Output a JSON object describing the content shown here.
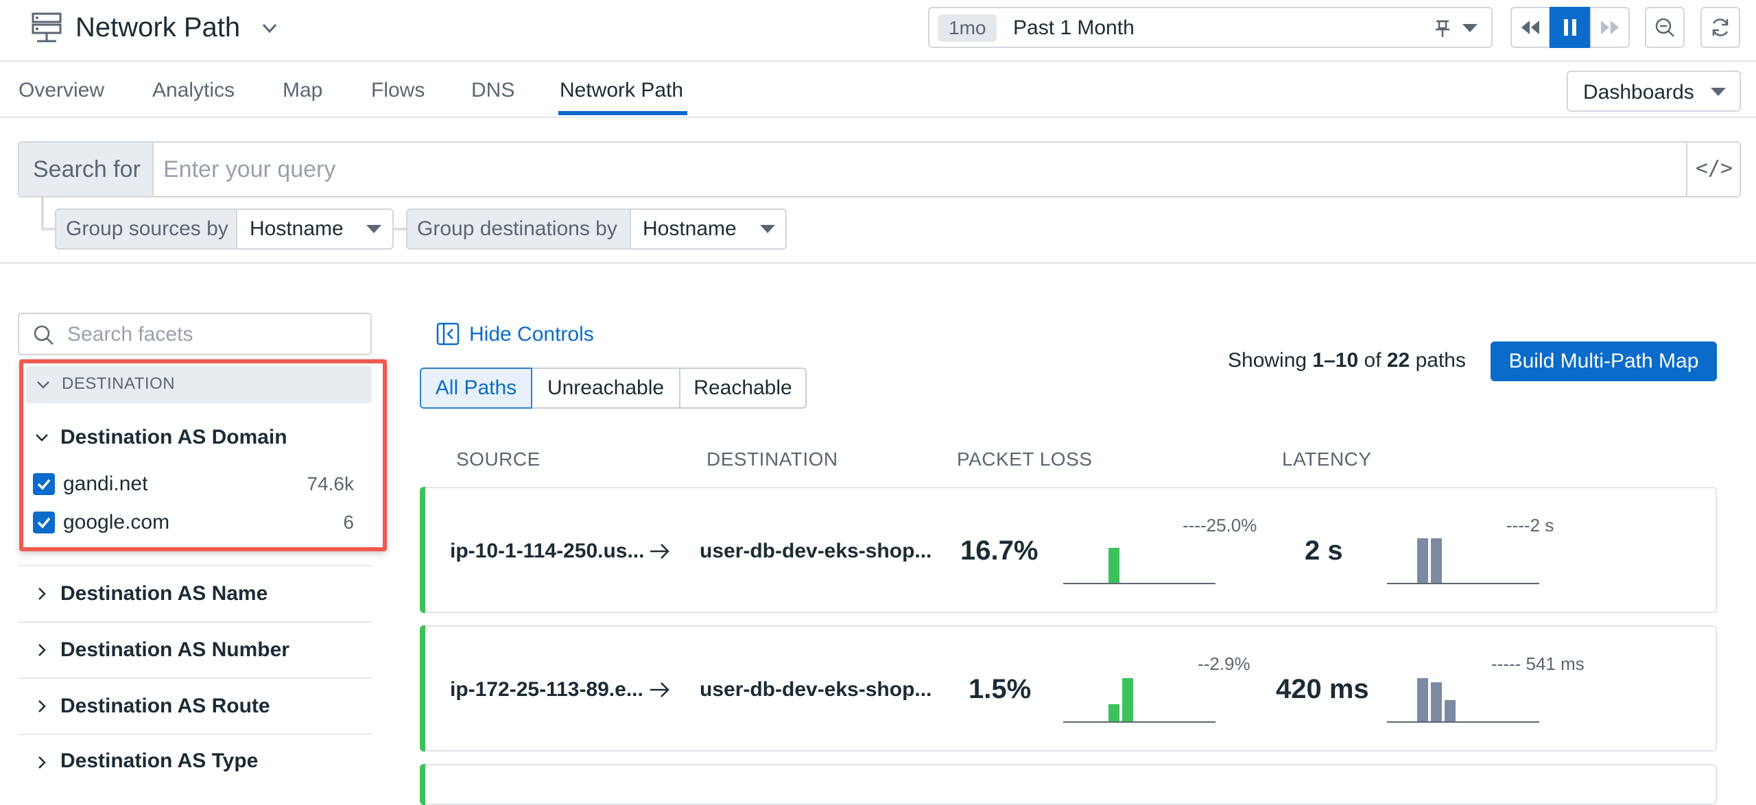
{
  "header": {
    "title": "Network Path",
    "icon": "network-path-icon",
    "time_badge": "1mo",
    "time_label": "Past 1 Month"
  },
  "tabs": [
    {
      "label": "Overview",
      "active": false
    },
    {
      "label": "Analytics",
      "active": false
    },
    {
      "label": "Map",
      "active": false
    },
    {
      "label": "Flows",
      "active": false
    },
    {
      "label": "DNS",
      "active": false
    },
    {
      "label": "Network Path",
      "active": true
    }
  ],
  "dashboards_label": "Dashboards",
  "search": {
    "prefix": "Search for",
    "placeholder": "Enter your query",
    "code_glyph": "</>"
  },
  "grouping": {
    "sources_label": "Group sources by",
    "sources_value": "Hostname",
    "destinations_label": "Group destinations by",
    "destinations_value": "Hostname"
  },
  "facets": {
    "search_placeholder": "Search facets",
    "section_label": "DESTINATION",
    "expanded_title": "Destination AS Domain",
    "values": [
      {
        "label": "gandi.net",
        "count": "74.6k",
        "checked": true
      },
      {
        "label": "google.com",
        "count": "6",
        "checked": true
      }
    ],
    "collapsed": [
      "Destination AS Name",
      "Destination AS Number",
      "Destination AS Route",
      "Destination AS Type"
    ]
  },
  "controls": {
    "hide_label": "Hide Controls",
    "filters": [
      {
        "label": "All Paths",
        "active": true
      },
      {
        "label": "Unreachable",
        "active": false
      },
      {
        "label": "Reachable",
        "active": false
      }
    ],
    "showing_prefix": "Showing ",
    "showing_range": "1–10",
    "showing_of": " of ",
    "showing_total": "22",
    "showing_suffix": " paths",
    "build_label": "Build Multi-Path Map"
  },
  "columns": [
    "SOURCE",
    "DESTINATION",
    "PACKET LOSS",
    "LATENCY"
  ],
  "paths": [
    {
      "source": "ip-10-1-114-250.us...",
      "destination": "user-db-dev-eks-shop...",
      "packet_loss": "16.7%",
      "loss_ref": "----25.0%",
      "latency": "2 s",
      "latency_ref": "----2 s",
      "status_color": "#3cc25a"
    },
    {
      "source": "ip-172-25-113-89.e...",
      "destination": "user-db-dev-eks-shop...",
      "packet_loss": "1.5%",
      "loss_ref": "--2.9%",
      "latency": "420 ms",
      "latency_ref": "----- 541 ms",
      "status_color": "#3cc25a"
    }
  ],
  "colors": {
    "accent": "#0b6bcb",
    "highlight": "#f05a4f",
    "ok": "#3cc25a",
    "bar_latency": "#7d8aa3"
  }
}
